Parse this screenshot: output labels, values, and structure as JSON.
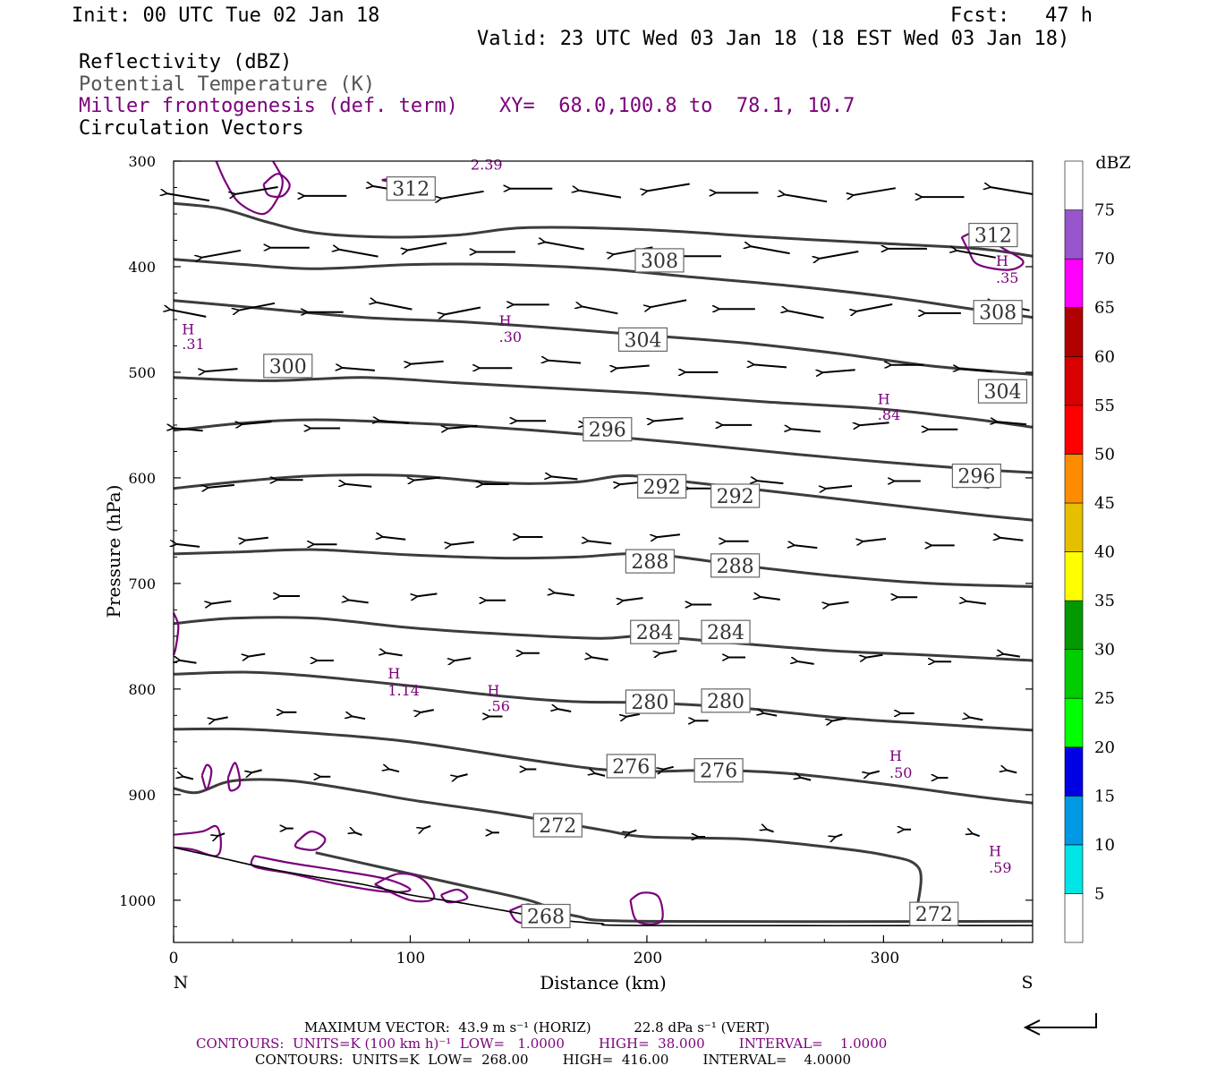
{
  "header": {
    "init": "Init: 00 UTC Tue 02 Jan 18",
    "fcst": "Fcst:   47 h",
    "valid": "Valid: 23 UTC Wed 03 Jan 18 (18 EST Wed 03 Jan 18)",
    "fields": [
      {
        "label": "Reflectivity (dBZ)",
        "color": "#000000"
      },
      {
        "label": "Potential Temperature (K)",
        "color": "#555555"
      },
      {
        "label": "Miller frontogenesis (def. term)",
        "color": "#7b007b"
      },
      {
        "label": "Circulation Vectors",
        "color": "#000000"
      }
    ],
    "xy": "XY=  68.0,100.8 to  78.1, 10.7"
  },
  "footer": {
    "max_vector": "MAXIMUM VECTOR:  43.9 m s⁻¹ (HORIZ)          22.8 dPa s⁻¹ (VERT)",
    "contours_fg": "CONTOURS:  UNITS=K (100 km h)⁻¹  LOW=   1.0000        HIGH=  38.000        INTERVAL=    1.0000",
    "contours_theta": "CONTOURS:  UNITS=K  LOW=  268.00        HIGH=  416.00        INTERVAL=    4.0000"
  },
  "colors": {
    "theta": "#3c3c3c",
    "frontogenesis": "#7b007b",
    "vectors": "#000000"
  },
  "chart_data": {
    "type": "cross-section",
    "xlabel": "Distance (km)",
    "ylabel": "Pressure (hPa)",
    "xlim": [
      0,
      363
    ],
    "ylim": [
      1040,
      300
    ],
    "x_ticks": [
      0,
      100,
      200,
      300
    ],
    "y_ticks": [
      300,
      400,
      500,
      600,
      700,
      800,
      900,
      1000
    ],
    "left_end_label": "N",
    "right_end_label": "S",
    "colorbar": {
      "title": "dBZ",
      "levels": [
        5,
        10,
        15,
        20,
        25,
        30,
        35,
        40,
        45,
        50,
        55,
        60,
        65,
        70,
        75
      ],
      "colors": [
        "#ffffff",
        "#00e5e5",
        "#0099e5",
        "#0000e5",
        "#00ff00",
        "#00cc00",
        "#009900",
        "#ffff00",
        "#e5bf00",
        "#ff8c00",
        "#ff0000",
        "#d90000",
        "#b00000",
        "#ff00ff",
        "#9955cc",
        "#ffffff"
      ]
    },
    "theta_contours": [
      {
        "value": 312,
        "points": [
          [
            0,
            340
          ],
          [
            20,
            345
          ],
          [
            40,
            358
          ],
          [
            60,
            368
          ],
          [
            90,
            372
          ],
          [
            120,
            370
          ],
          [
            150,
            363
          ],
          [
            200,
            365
          ],
          [
            250,
            372
          ],
          [
            300,
            378
          ],
          [
            340,
            383
          ],
          [
            363,
            390
          ]
        ]
      },
      {
        "value": 308,
        "points": [
          [
            0,
            393
          ],
          [
            30,
            398
          ],
          [
            60,
            402
          ],
          [
            100,
            398
          ],
          [
            140,
            398
          ],
          [
            180,
            402
          ],
          [
            220,
            410
          ],
          [
            260,
            418
          ],
          [
            300,
            428
          ],
          [
            340,
            441
          ],
          [
            363,
            448
          ]
        ]
      },
      {
        "value": 304,
        "points": [
          [
            0,
            432
          ],
          [
            40,
            440
          ],
          [
            80,
            448
          ],
          [
            120,
            452
          ],
          [
            160,
            458
          ],
          [
            200,
            465
          ],
          [
            240,
            472
          ],
          [
            280,
            482
          ],
          [
            320,
            494
          ],
          [
            363,
            502
          ]
        ]
      },
      {
        "value": 300,
        "points": [
          [
            0,
            505
          ],
          [
            40,
            508
          ],
          [
            80,
            505
          ],
          [
            120,
            510
          ],
          [
            160,
            515
          ],
          [
            200,
            520
          ],
          [
            250,
            528
          ],
          [
            300,
            535
          ],
          [
            340,
            545
          ],
          [
            363,
            552
          ]
        ]
      },
      {
        "value": 296,
        "points": [
          [
            0,
            555
          ],
          [
            30,
            548
          ],
          [
            60,
            545
          ],
          [
            100,
            548
          ],
          [
            140,
            553
          ],
          [
            180,
            560
          ],
          [
            220,
            568
          ],
          [
            260,
            577
          ],
          [
            300,
            585
          ],
          [
            340,
            592
          ],
          [
            363,
            595
          ]
        ]
      },
      {
        "value": 292,
        "points": [
          [
            0,
            610
          ],
          [
            30,
            603
          ],
          [
            60,
            598
          ],
          [
            100,
            598
          ],
          [
            140,
            605
          ],
          [
            170,
            604
          ],
          [
            190,
            598
          ],
          [
            210,
            602
          ],
          [
            250,
            612
          ],
          [
            300,
            625
          ],
          [
            340,
            635
          ],
          [
            363,
            640
          ]
        ]
      },
      {
        "value": 288,
        "points": [
          [
            0,
            672
          ],
          [
            30,
            670
          ],
          [
            60,
            668
          ],
          [
            100,
            673
          ],
          [
            140,
            676
          ],
          [
            170,
            675
          ],
          [
            200,
            672
          ],
          [
            240,
            683
          ],
          [
            280,
            693
          ],
          [
            320,
            700
          ],
          [
            363,
            703
          ]
        ]
      },
      {
        "value": 284,
        "points": [
          [
            0,
            738
          ],
          [
            25,
            733
          ],
          [
            60,
            733
          ],
          [
            100,
            742
          ],
          [
            140,
            748
          ],
          [
            180,
            752
          ],
          [
            200,
            750
          ],
          [
            240,
            757
          ],
          [
            280,
            764
          ],
          [
            320,
            768
          ],
          [
            363,
            773
          ]
        ]
      },
      {
        "value": 280,
        "points": [
          [
            0,
            786
          ],
          [
            30,
            784
          ],
          [
            60,
            788
          ],
          [
            100,
            797
          ],
          [
            140,
            807
          ],
          [
            170,
            812
          ],
          [
            200,
            813
          ],
          [
            240,
            818
          ],
          [
            280,
            827
          ],
          [
            320,
            833
          ],
          [
            363,
            839
          ]
        ]
      },
      {
        "value": 276,
        "points": [
          [
            0,
            838
          ],
          [
            30,
            838
          ],
          [
            60,
            842
          ],
          [
            100,
            850
          ],
          [
            150,
            867
          ],
          [
            180,
            876
          ],
          [
            200,
            878
          ],
          [
            230,
            877
          ],
          [
            260,
            880
          ],
          [
            300,
            890
          ],
          [
            340,
            902
          ],
          [
            363,
            908
          ]
        ]
      },
      {
        "value": 272,
        "points": [
          [
            0,
            894
          ],
          [
            10,
            898
          ],
          [
            25,
            887
          ],
          [
            50,
            887
          ],
          [
            80,
            897
          ],
          [
            100,
            905
          ],
          [
            140,
            918
          ],
          [
            180,
            933
          ],
          [
            200,
            940
          ],
          [
            240,
            942
          ],
          [
            270,
            948
          ],
          [
            300,
            957
          ],
          [
            315,
            970
          ],
          [
            314,
            1010
          ]
        ]
      },
      {
        "value": 272,
        "points": [
          [
            60,
            955
          ],
          [
            90,
            970
          ],
          [
            120,
            985
          ],
          [
            150,
            1000
          ],
          [
            170,
            1015
          ],
          [
            200,
            1020
          ],
          [
            363,
            1020
          ]
        ]
      }
    ],
    "theta_labels": [
      {
        "text": "312",
        "x": 92,
        "p": 326
      },
      {
        "text": "312",
        "x": 338,
        "p": 370
      },
      {
        "text": "308",
        "x": 197,
        "p": 394
      },
      {
        "text": "308",
        "x": 340,
        "p": 443
      },
      {
        "text": "304",
        "x": 190,
        "p": 469
      },
      {
        "text": "304",
        "x": 342,
        "p": 518
      },
      {
        "text": "300",
        "x": 40,
        "p": 494
      },
      {
        "text": "296",
        "x": 175,
        "p": 554
      },
      {
        "text": "296",
        "x": 331,
        "p": 598
      },
      {
        "text": "292",
        "x": 198,
        "p": 608
      },
      {
        "text": "292",
        "x": 229,
        "p": 617
      },
      {
        "text": "288",
        "x": 193,
        "p": 679
      },
      {
        "text": "288",
        "x": 229,
        "p": 683
      },
      {
        "text": "284",
        "x": 195,
        "p": 746
      },
      {
        "text": "284",
        "x": 225,
        "p": 746
      },
      {
        "text": "280",
        "x": 193,
        "p": 812
      },
      {
        "text": "280",
        "x": 225,
        "p": 811
      },
      {
        "text": "276",
        "x": 185,
        "p": 873
      },
      {
        "text": "276",
        "x": 222,
        "p": 877
      },
      {
        "text": "272",
        "x": 154,
        "p": 929
      },
      {
        "text": "272",
        "x": 313,
        "p": 1013
      },
      {
        "text": "268",
        "x": 149,
        "p": 1015
      }
    ],
    "frontogenesis_labels": [
      {
        "text": "2.39",
        "x": 124,
        "p": 303
      },
      {
        "text": "H",
        "x": 2,
        "p": 459
      },
      {
        "text": ".31",
        "x": 2,
        "p": 473
      },
      {
        "text": "H",
        "x": 136,
        "p": 451
      },
      {
        "text": ".30",
        "x": 136,
        "p": 466
      },
      {
        "text": "H",
        "x": 346,
        "p": 394
      },
      {
        "text": ".35",
        "x": 346,
        "p": 410
      },
      {
        "text": "H",
        "x": 296,
        "p": 525
      },
      {
        "text": ".84",
        "x": 296,
        "p": 540
      },
      {
        "text": "H",
        "x": 89,
        "p": 785
      },
      {
        "text": "1.14",
        "x": 89,
        "p": 801
      },
      {
        "text": "H",
        "x": 131,
        "p": 801
      },
      {
        "text": ".56",
        "x": 131,
        "p": 816
      },
      {
        "text": "H",
        "x": 301,
        "p": 863
      },
      {
        "text": ".50",
        "x": 301,
        "p": 879
      },
      {
        "text": "H",
        "x": 343,
        "p": 953
      },
      {
        "text": ".59",
        "x": 343,
        "p": 969
      }
    ],
    "frontogenesis_contours": [
      [
        [
          18,
          300
        ],
        [
          22,
          320
        ],
        [
          28,
          340
        ],
        [
          38,
          350
        ],
        [
          44,
          335
        ],
        [
          46,
          318
        ],
        [
          42,
          300
        ]
      ],
      [
        [
          38,
          322
        ],
        [
          44,
          312
        ],
        [
          49,
          322
        ],
        [
          46,
          333
        ],
        [
          40,
          332
        ],
        [
          38,
          322
        ]
      ],
      [
        [
          88,
          318
        ],
        [
          94,
          316
        ],
        [
          93,
          320
        ],
        [
          88,
          318
        ]
      ],
      [
        [
          333,
          372
        ],
        [
          340,
          368
        ],
        [
          350,
          382
        ],
        [
          359,
          395
        ],
        [
          353,
          403
        ],
        [
          340,
          398
        ],
        [
          336,
          385
        ],
        [
          333,
          372
        ]
      ],
      [
        [
          0,
          728
        ],
        [
          2,
          740
        ],
        [
          1,
          760
        ],
        [
          0,
          768
        ]
      ],
      [
        [
          12,
          882
        ],
        [
          14,
          872
        ],
        [
          16,
          878
        ],
        [
          14,
          895
        ],
        [
          12,
          882
        ]
      ],
      [
        [
          23,
          884
        ],
        [
          26,
          870
        ],
        [
          28,
          890
        ],
        [
          24,
          896
        ],
        [
          23,
          884
        ]
      ],
      [
        [
          52,
          945
        ],
        [
          58,
          935
        ],
        [
          64,
          942
        ],
        [
          60,
          952
        ],
        [
          52,
          950
        ],
        [
          52,
          945
        ]
      ],
      [
        [
          0,
          938
        ],
        [
          12,
          935
        ],
        [
          18,
          930
        ],
        [
          20,
          945
        ],
        [
          18,
          958
        ],
        [
          8,
          952
        ],
        [
          0,
          950
        ]
      ],
      [
        [
          34,
          958
        ],
        [
          50,
          965
        ],
        [
          70,
          972
        ],
        [
          90,
          980
        ],
        [
          100,
          990
        ],
        [
          90,
          992
        ],
        [
          70,
          985
        ],
        [
          50,
          975
        ],
        [
          34,
          968
        ],
        [
          34,
          958
        ]
      ],
      [
        [
          85,
          985
        ],
        [
          95,
          975
        ],
        [
          105,
          980
        ],
        [
          110,
          998
        ],
        [
          100,
          1000
        ],
        [
          85,
          985
        ]
      ],
      [
        [
          113,
          995
        ],
        [
          120,
          990
        ],
        [
          124,
          998
        ],
        [
          116,
          1002
        ],
        [
          113,
          995
        ]
      ],
      [
        [
          142,
          1010
        ],
        [
          150,
          1004
        ],
        [
          155,
          1012
        ],
        [
          152,
          1022
        ],
        [
          145,
          1020
        ],
        [
          142,
          1010
        ]
      ],
      [
        [
          193,
          1000
        ],
        [
          198,
          993
        ],
        [
          205,
          997
        ],
        [
          206,
          1020
        ],
        [
          196,
          1020
        ],
        [
          193,
          1000
        ]
      ]
    ],
    "terrain": [
      [
        0,
        950
      ],
      [
        20,
        960
      ],
      [
        40,
        970
      ],
      [
        60,
        978
      ],
      [
        80,
        985
      ],
      [
        100,
        995
      ],
      [
        120,
        1002
      ],
      [
        140,
        1010
      ],
      [
        160,
        1018
      ],
      [
        180,
        1022
      ],
      [
        200,
        1024
      ],
      [
        363,
        1024
      ]
    ],
    "vectors_note": "arrows point mostly from south to north; magnitude largest aloft (~43.9 m/s max)"
  }
}
